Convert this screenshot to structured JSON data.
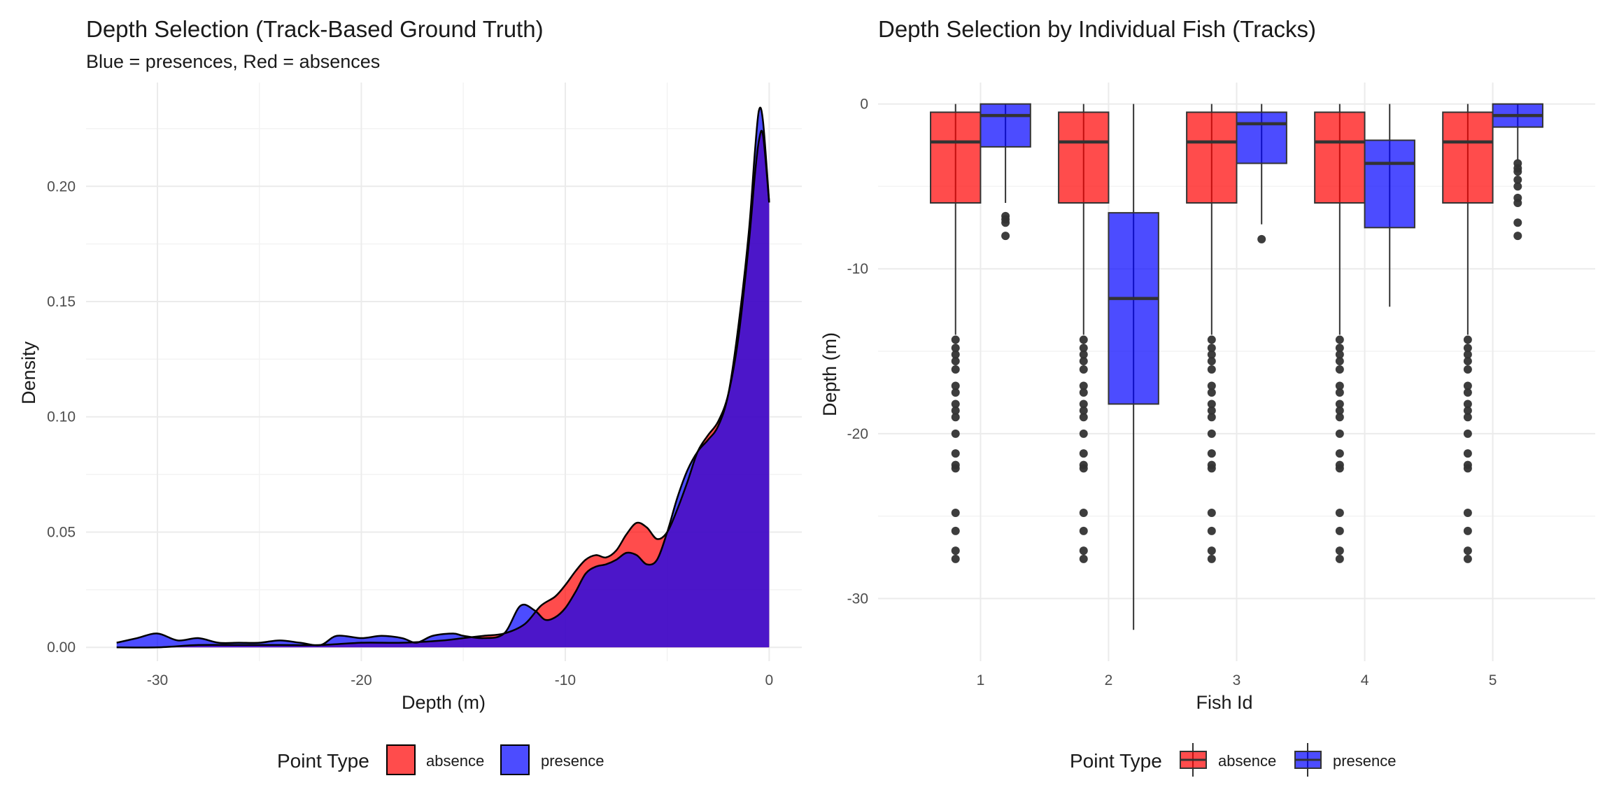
{
  "chart_data": [
    {
      "type": "area",
      "title": "Depth Selection (Track-Based Ground Truth)",
      "subtitle": "Blue = presences, Red = absences",
      "xlabel": "Depth (m)",
      "ylabel": "Density",
      "xlim": [
        -33.5,
        1.6
      ],
      "ylim": [
        -0.006,
        0.245
      ],
      "xticks": [
        -30,
        -20,
        -10,
        0
      ],
      "xtick_labels": [
        "-30",
        "-20",
        "-10",
        "0"
      ],
      "yticks": [
        0.0,
        0.05,
        0.1,
        0.15,
        0.2
      ],
      "ytick_labels": [
        "0.00",
        "0.05",
        "0.10",
        "0.15",
        "0.20"
      ],
      "legend": {
        "title": "Point Type",
        "position": "bottom",
        "entries": [
          "absence",
          "presence"
        ]
      },
      "series": [
        {
          "name": "absence",
          "color": "#FF0000",
          "x": [
            -32,
            -30,
            -28,
            -26,
            -24,
            -22,
            -20,
            -18,
            -16,
            -15,
            -14,
            -13,
            -12,
            -11.2,
            -10.5,
            -10,
            -9.5,
            -9,
            -8.5,
            -8,
            -7.5,
            -7,
            -6.5,
            -6,
            -5.5,
            -5,
            -4.5,
            -4,
            -3.5,
            -3,
            -2.5,
            -2,
            -1.5,
            -1,
            -0.7,
            -0.5,
            -0.3,
            0
          ],
          "y": [
            0.0,
            0.0,
            0.001,
            0.001,
            0.001,
            0.001,
            0.002,
            0.002,
            0.003,
            0.004,
            0.005,
            0.006,
            0.01,
            0.018,
            0.022,
            0.027,
            0.033,
            0.038,
            0.04,
            0.039,
            0.042,
            0.049,
            0.054,
            0.052,
            0.047,
            0.05,
            0.06,
            0.072,
            0.085,
            0.092,
            0.098,
            0.11,
            0.135,
            0.175,
            0.205,
            0.22,
            0.222,
            0.193
          ]
        },
        {
          "name": "presence",
          "color": "#0000FF",
          "x": [
            -32,
            -31,
            -30,
            -29,
            -28,
            -27,
            -26,
            -25,
            -24,
            -23,
            -22,
            -21.2,
            -20,
            -19,
            -18,
            -17.3,
            -16.5,
            -15.5,
            -15,
            -14,
            -13,
            -12.2,
            -11.5,
            -11,
            -10.5,
            -10,
            -9.5,
            -9,
            -8.5,
            -8,
            -7.5,
            -7,
            -6.5,
            -6,
            -5.5,
            -5,
            -4.5,
            -4,
            -3.5,
            -3,
            -2.5,
            -2,
            -1.5,
            -1,
            -0.7,
            -0.5,
            -0.3,
            0
          ],
          "y": [
            0.002,
            0.004,
            0.006,
            0.003,
            0.004,
            0.002,
            0.002,
            0.002,
            0.003,
            0.002,
            0.001,
            0.005,
            0.004,
            0.005,
            0.004,
            0.002,
            0.005,
            0.006,
            0.005,
            0.004,
            0.006,
            0.018,
            0.016,
            0.012,
            0.013,
            0.017,
            0.024,
            0.032,
            0.035,
            0.036,
            0.038,
            0.041,
            0.04,
            0.036,
            0.038,
            0.05,
            0.065,
            0.077,
            0.085,
            0.09,
            0.096,
            0.11,
            0.14,
            0.18,
            0.215,
            0.233,
            0.228,
            0.193
          ]
        }
      ]
    },
    {
      "type": "box",
      "title": "Depth Selection by Individual Fish (Tracks)",
      "xlabel": "Fish Id",
      "ylabel": "Depth (m)",
      "ylim": [
        -33.8,
        1.3
      ],
      "yticks": [
        0,
        -10,
        -20,
        -30
      ],
      "ytick_labels": [
        "0",
        "-10",
        "-20",
        "-30"
      ],
      "categories": [
        "1",
        "2",
        "3",
        "4",
        "5"
      ],
      "legend": {
        "title": "Point Type",
        "position": "bottom",
        "entries": [
          "absence",
          "presence"
        ]
      },
      "series": [
        {
          "name": "absence",
          "color": "#FF0000",
          "boxes": [
            {
              "fish": "1",
              "q1": -6.0,
              "median": -2.3,
              "q3": -0.5,
              "whisker_low": -14.0,
              "whisker_high": 0.0,
              "outliers": [
                -14.3,
                -14.8,
                -15.2,
                -15.6,
                -16.1,
                -17.1,
                -17.5,
                -18.2,
                -18.6,
                -19.0,
                -20.0,
                -21.2,
                -21.9,
                -22.1,
                -24.8,
                -25.9,
                -27.1,
                -27.6
              ]
            },
            {
              "fish": "2",
              "q1": -6.0,
              "median": -2.3,
              "q3": -0.5,
              "whisker_low": -14.0,
              "whisker_high": 0.0,
              "outliers": [
                -14.3,
                -14.8,
                -15.2,
                -15.6,
                -16.1,
                -17.1,
                -17.5,
                -18.2,
                -18.6,
                -19.0,
                -20.0,
                -21.2,
                -21.9,
                -22.1,
                -24.8,
                -25.9,
                -27.1,
                -27.6
              ]
            },
            {
              "fish": "3",
              "q1": -6.0,
              "median": -2.3,
              "q3": -0.5,
              "whisker_low": -14.0,
              "whisker_high": 0.0,
              "outliers": [
                -14.3,
                -14.8,
                -15.2,
                -15.6,
                -16.1,
                -17.1,
                -17.5,
                -18.2,
                -18.6,
                -19.0,
                -20.0,
                -21.2,
                -21.9,
                -22.1,
                -24.8,
                -25.9,
                -27.1,
                -27.6
              ]
            },
            {
              "fish": "4",
              "q1": -6.0,
              "median": -2.3,
              "q3": -0.5,
              "whisker_low": -14.0,
              "whisker_high": 0.0,
              "outliers": [
                -14.3,
                -14.8,
                -15.2,
                -15.6,
                -16.1,
                -17.1,
                -17.5,
                -18.2,
                -18.6,
                -19.0,
                -20.0,
                -21.2,
                -21.9,
                -22.1,
                -24.8,
                -25.9,
                -27.1,
                -27.6
              ]
            },
            {
              "fish": "5",
              "q1": -6.0,
              "median": -2.3,
              "q3": -0.5,
              "whisker_low": -14.0,
              "whisker_high": 0.0,
              "outliers": [
                -14.3,
                -14.8,
                -15.2,
                -15.6,
                -16.1,
                -17.1,
                -17.5,
                -18.2,
                -18.6,
                -19.0,
                -20.0,
                -21.2,
                -21.9,
                -22.1,
                -24.8,
                -25.9,
                -27.1,
                -27.6
              ]
            }
          ]
        },
        {
          "name": "presence",
          "color": "#0000FF",
          "boxes": [
            {
              "fish": "1",
              "q1": -2.6,
              "median": -0.7,
              "q3": 0.0,
              "whisker_low": -6.0,
              "whisker_high": 0.0,
              "outliers": [
                -6.8,
                -7.0,
                -7.2,
                -8.0
              ]
            },
            {
              "fish": "2",
              "q1": -18.2,
              "median": -11.8,
              "q3": -6.6,
              "whisker_low": -31.9,
              "whisker_high": 0.0,
              "outliers": []
            },
            {
              "fish": "3",
              "q1": -3.6,
              "median": -1.2,
              "q3": -0.5,
              "whisker_low": -7.3,
              "whisker_high": 0.0,
              "outliers": [
                -8.2
              ]
            },
            {
              "fish": "4",
              "q1": -7.5,
              "median": -3.6,
              "q3": -2.2,
              "whisker_low": -12.3,
              "whisker_high": 0.0,
              "outliers": []
            },
            {
              "fish": "5",
              "q1": -1.4,
              "median": -0.7,
              "q3": 0.0,
              "whisker_low": -3.4,
              "whisker_high": 0.0,
              "outliers": [
                -3.6,
                -3.9,
                -4.1,
                -4.6,
                -5.0,
                -5.7,
                -6.0,
                -7.2,
                -8.0
              ]
            }
          ]
        }
      ]
    }
  ]
}
